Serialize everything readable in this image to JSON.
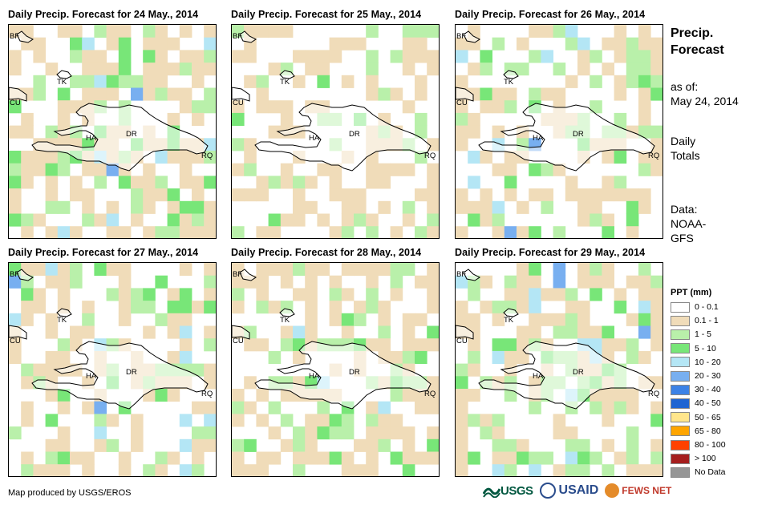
{
  "panels": [
    {
      "title": "Daily Precip. Forecast for 24 May., 2014"
    },
    {
      "title": "Daily Precip. Forecast for 25 May., 2014"
    },
    {
      "title": "Daily Precip. Forecast for 26 May., 2014"
    },
    {
      "title": "Daily Precip. Forecast for 27 May., 2014"
    },
    {
      "title": "Daily Precip. Forecast for 28 May., 2014"
    },
    {
      "title": "Daily Precip. Forecast for 29 May., 2014"
    }
  ],
  "map_labels": {
    "bf": "BF",
    "cu": "CU",
    "ha": "HA",
    "dr": "DR",
    "rq": "RQ",
    "tk": "TK"
  },
  "sidebar": {
    "title_line1": "Precip.",
    "title_line2": "Forecast",
    "asof_line1": "as of:",
    "asof_line2": "May 24, 2014",
    "daily_line1": "Daily",
    "daily_line2": "Totals",
    "data_line1": "Data:",
    "data_line2": "NOAA-",
    "data_line3": "GFS"
  },
  "legend": {
    "title": "PPT (mm)",
    "items": [
      {
        "label": "0 - 0.1",
        "color": "#ffffff"
      },
      {
        "label": "0.1 - 1",
        "color": "#f0dcb9"
      },
      {
        "label": "1 - 5",
        "color": "#b9f0aa"
      },
      {
        "label": "5 - 10",
        "color": "#78e678"
      },
      {
        "label": "10 - 20",
        "color": "#b4e6f5"
      },
      {
        "label": "20 - 30",
        "color": "#78aff0"
      },
      {
        "label": "30 - 40",
        "color": "#3c82e6"
      },
      {
        "label": "40 - 50",
        "color": "#1e64d2"
      },
      {
        "label": "50 - 65",
        "color": "#ffe68c"
      },
      {
        "label": "65 - 80",
        "color": "#ffa500"
      },
      {
        "label": "80 - 100",
        "color": "#ff4100"
      },
      {
        "label": "> 100",
        "color": "#a51e1e"
      },
      {
        "label": "No Data",
        "color": "#969696"
      }
    ]
  },
  "credit": "Map produced by USGS/EROS",
  "logos": {
    "usgs": "USGS",
    "usaid": "USAID",
    "fewsnet": "FEWS NET"
  }
}
